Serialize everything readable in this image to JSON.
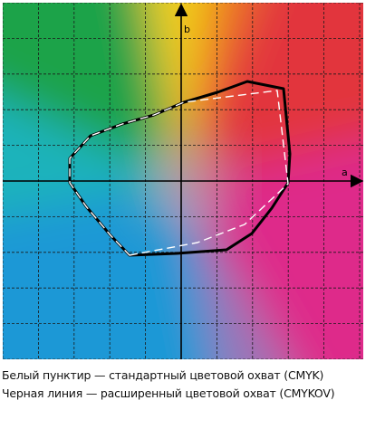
{
  "axes": {
    "b_label": "b",
    "a_label": "a"
  },
  "legend": {
    "standard_gamut": "Белый пунктир — стандартный цветовой охват (CMYK)",
    "extended_gamut": "Черная линия — расширенный цветовой охват (CMYKOV)"
  },
  "colors": {
    "grid": "#1a1a1a",
    "extended_outline": "#000000",
    "standard_dashed": "#ffffff",
    "green": "#1aa34a",
    "yellow": "#f2d21b",
    "orange": "#ee7a1e",
    "red": "#e2343c",
    "magenta": "#de2a8a",
    "violet": "#9a76b8",
    "blue": "#1e98d6",
    "cyan": "#1bb3bb"
  }
}
